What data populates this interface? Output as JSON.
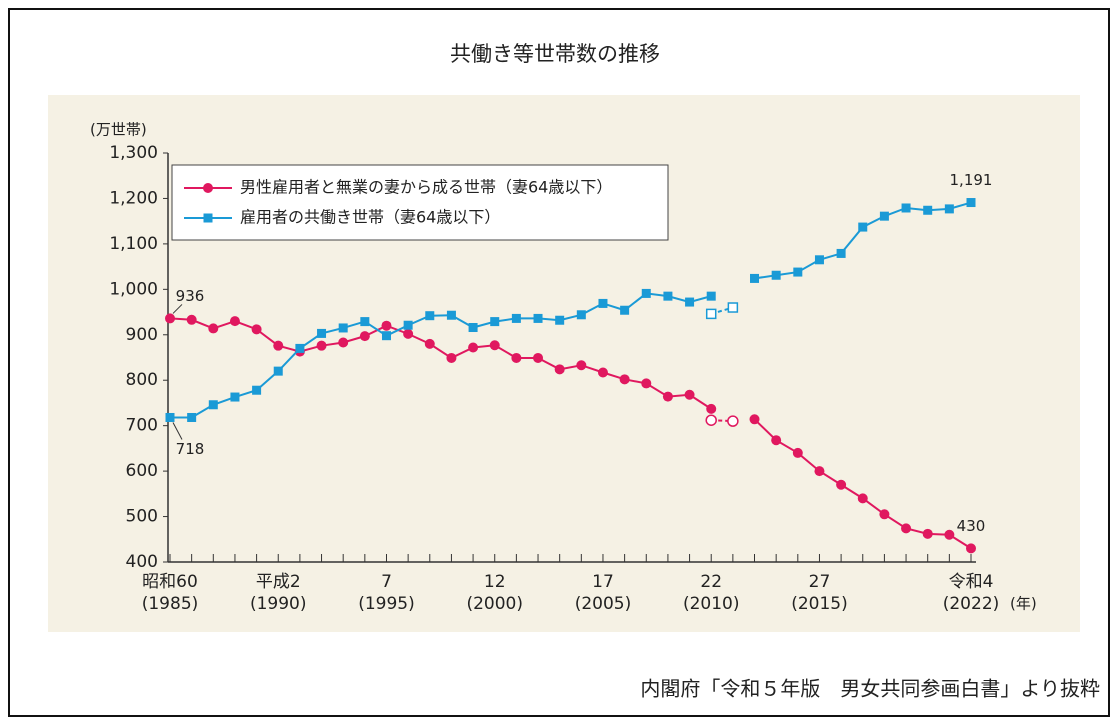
{
  "chart_data": {
    "type": "line",
    "title": "共働き等世帯数の推移",
    "y_unit": "(万世帯)",
    "x_unit": "(年)",
    "source": "内閣府「令和５年版　男女共同参画白書」より抜粋",
    "categories": [
      "昭和60",
      null,
      null,
      null,
      null,
      "平成2",
      null,
      null,
      null,
      null,
      "7",
      null,
      null,
      null,
      null,
      "12",
      null,
      null,
      null,
      null,
      "17",
      null,
      null,
      null,
      null,
      "22",
      null,
      null,
      null,
      null,
      "27",
      null,
      null,
      null,
      null,
      null,
      null,
      "令和4"
    ],
    "categories_western": [
      "(1985)",
      null,
      null,
      null,
      null,
      "(1990)",
      null,
      null,
      null,
      null,
      "(1995)",
      null,
      null,
      null,
      null,
      "(2000)",
      null,
      null,
      null,
      null,
      "(2005)",
      null,
      null,
      null,
      null,
      "(2010)",
      null,
      null,
      null,
      null,
      "(2015)",
      null,
      null,
      null,
      null,
      null,
      null,
      "(2022)"
    ],
    "ylim": [
      400,
      1300
    ],
    "yticks": [
      400,
      500,
      600,
      700,
      800,
      900,
      {
        "value": 1000,
        "label": "1,000"
      },
      {
        "value": 1100,
        "label": "1,100"
      },
      {
        "value": 1200,
        "label": "1,200"
      },
      {
        "value": 1300,
        "label": "1,300"
      }
    ],
    "series": [
      {
        "name": "男性雇用者と無業の妻から成る世帯（妻64歳以下）",
        "color": "#e0185f",
        "marker": "circle",
        "values": [
          936,
          933,
          914,
          930,
          912,
          876,
          863,
          876,
          883,
          897,
          920,
          902,
          880,
          849,
          872,
          877,
          849,
          849,
          824,
          833,
          817,
          802,
          793,
          764,
          768,
          737,
          null,
          714,
          668,
          640,
          600,
          570,
          540,
          505,
          474,
          462,
          460,
          430
        ],
        "value_labels": [
          "936",
          null,
          null,
          null,
          null,
          null,
          null,
          null,
          null,
          null,
          null,
          null,
          null,
          null,
          null,
          null,
          null,
          null,
          null,
          null,
          null,
          null,
          null,
          null,
          null,
          null,
          null,
          null,
          null,
          null,
          null,
          null,
          null,
          null,
          null,
          null,
          null,
          "430"
        ]
      },
      {
        "name": "雇用者の共働き世帯（妻64歳以下）",
        "color": "#1a9ad6",
        "marker": "square",
        "values": [
          718,
          718,
          746,
          763,
          778,
          820,
          870,
          903,
          915,
          929,
          898,
          921,
          942,
          943,
          916,
          929,
          936,
          936,
          932,
          944,
          969,
          954,
          991,
          985,
          972,
          985,
          null,
          1024,
          1031,
          1038,
          1065,
          1079,
          1137,
          1161,
          1179,
          1174,
          1177,
          1191
        ],
        "value_labels": [
          "718",
          null,
          null,
          null,
          null,
          null,
          null,
          null,
          null,
          null,
          null,
          null,
          null,
          null,
          null,
          null,
          null,
          null,
          null,
          null,
          null,
          null,
          null,
          null,
          null,
          null,
          null,
          null,
          null,
          null,
          null,
          null,
          null,
          null,
          null,
          null,
          null,
          "1,191"
        ]
      },
      {
        "color": "#e0185f",
        "marker": "circle",
        "hollow": true,
        "values": [
          null,
          null,
          null,
          null,
          null,
          null,
          null,
          null,
          null,
          null,
          null,
          null,
          null,
          null,
          null,
          null,
          null,
          null,
          null,
          null,
          null,
          null,
          null,
          null,
          null,
          712,
          710,
          null,
          null,
          null,
          null,
          null,
          null,
          null,
          null,
          null,
          null,
          null
        ]
      },
      {
        "color": "#1a9ad6",
        "marker": "square",
        "hollow": true,
        "values": [
          null,
          null,
          null,
          null,
          null,
          null,
          null,
          null,
          null,
          null,
          null,
          null,
          null,
          null,
          null,
          null,
          null,
          null,
          null,
          null,
          null,
          null,
          null,
          null,
          null,
          946,
          960,
          null,
          null,
          null,
          null,
          null,
          null,
          null,
          null,
          null,
          null,
          null
        ]
      }
    ]
  }
}
